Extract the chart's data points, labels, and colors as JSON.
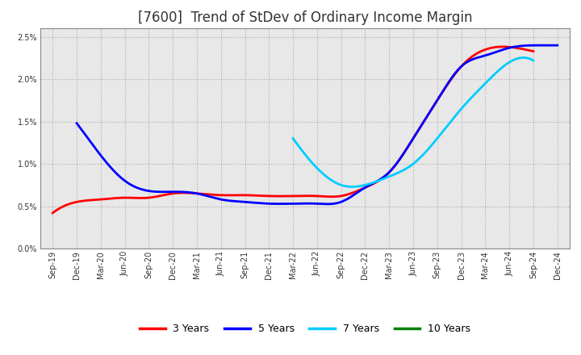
{
  "title": "[7600]  Trend of StDev of Ordinary Income Margin",
  "background_color": "#ffffff",
  "plot_bg_color": "#e8e8e8",
  "grid_color": "#aaaaaa",
  "ylim": [
    0.0,
    0.026
  ],
  "yticks": [
    0.0,
    0.005,
    0.01,
    0.015,
    0.02,
    0.025
  ],
  "x_ticks_labels": [
    "Sep-19",
    "Dec-19",
    "Mar-20",
    "Jun-20",
    "Sep-20",
    "Dec-20",
    "Mar-21",
    "Jun-21",
    "Sep-21",
    "Dec-21",
    "Mar-22",
    "Jun-22",
    "Sep-22",
    "Dec-22",
    "Mar-23",
    "Jun-23",
    "Sep-23",
    "Dec-23",
    "Mar-24",
    "Jun-24",
    "Sep-24",
    "Dec-24"
  ],
  "series": {
    "3 Years": {
      "color": "#ff0000",
      "indices": [
        0,
        1,
        2,
        3,
        4,
        5,
        6,
        7,
        8,
        9,
        10,
        11,
        12,
        13,
        14,
        15,
        16,
        17,
        18,
        19,
        20
      ],
      "values": [
        0.0042,
        0.0055,
        0.0058,
        0.006,
        0.006,
        0.0065,
        0.0065,
        0.0063,
        0.0063,
        0.0062,
        0.0062,
        0.0062,
        0.0062,
        0.0072,
        0.009,
        0.013,
        0.0175,
        0.0215,
        0.0235,
        0.0238,
        0.0233
      ]
    },
    "5 Years": {
      "color": "#0000ff",
      "indices": [
        1,
        2,
        3,
        4,
        5,
        6,
        7,
        8,
        9,
        10,
        11,
        12,
        13,
        14,
        15,
        16,
        17,
        18,
        19,
        20,
        21
      ],
      "values": [
        0.0148,
        0.011,
        0.008,
        0.0068,
        0.0067,
        0.0065,
        0.0058,
        0.0055,
        0.0053,
        0.0053,
        0.0053,
        0.0055,
        0.0072,
        0.009,
        0.013,
        0.0175,
        0.0215,
        0.0228,
        0.0237,
        0.024,
        0.024
      ]
    },
    "7 Years": {
      "color": "#00ccff",
      "indices": [
        10,
        11,
        12,
        13,
        14,
        15,
        16,
        17,
        18,
        19,
        20
      ],
      "values": [
        0.013,
        0.0095,
        0.0075,
        0.0075,
        0.0085,
        0.01,
        0.013,
        0.0165,
        0.0195,
        0.022,
        0.0222
      ]
    },
    "10 Years": {
      "color": "#008000",
      "indices": [],
      "values": []
    }
  },
  "legend": {
    "labels": [
      "3 Years",
      "5 Years",
      "7 Years",
      "10 Years"
    ],
    "colors": [
      "#ff0000",
      "#0000ff",
      "#00ccff",
      "#008000"
    ]
  },
  "title_fontsize": 12,
  "tick_fontsize": 7,
  "legend_fontsize": 9,
  "linewidth": 2.0
}
